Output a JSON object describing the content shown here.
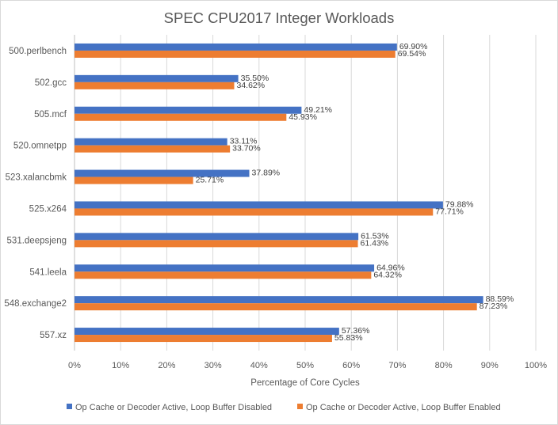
{
  "chart_data": {
    "type": "bar",
    "orientation": "horizontal",
    "title": "SPEC CPU2017 Integer Workloads",
    "xlabel": "Percentage of Core Cycles",
    "ylabel": "",
    "xlim": [
      0,
      100
    ],
    "x_ticks": [
      "0%",
      "10%",
      "20%",
      "30%",
      "40%",
      "50%",
      "60%",
      "70%",
      "80%",
      "90%",
      "100%"
    ],
    "grid": "vertical",
    "legend_position": "bottom",
    "categories": [
      "500.perlbench",
      "502.gcc",
      "505.mcf",
      "520.omnetpp",
      "523.xalancbmk",
      "525.x264",
      "531.deepsjeng",
      "541.leela",
      "548.exchange2",
      "557.xz"
    ],
    "series": [
      {
        "name": "Op Cache or Decoder Active, Loop Buffer Disabled",
        "color": "#4472C4",
        "values": [
          69.9,
          35.5,
          49.21,
          33.11,
          37.89,
          79.88,
          61.53,
          64.96,
          88.59,
          57.36
        ],
        "labels": [
          "69.90%",
          "35.50%",
          "49.21%",
          "33.11%",
          "37.89%",
          "79.88%",
          "61.53%",
          "64.96%",
          "88.59%",
          "57.36%"
        ]
      },
      {
        "name": "Op Cache or Decoder Active, Loop Buffer Enabled",
        "color": "#ED7D31",
        "values": [
          69.54,
          34.62,
          45.93,
          33.7,
          25.71,
          77.71,
          61.43,
          64.32,
          87.23,
          55.83
        ],
        "labels": [
          "69.54%",
          "34.62%",
          "45.93%",
          "33.70%",
          "25.71%",
          "77.71%",
          "61.43%",
          "64.32%",
          "87.23%",
          "55.83%"
        ]
      }
    ]
  }
}
